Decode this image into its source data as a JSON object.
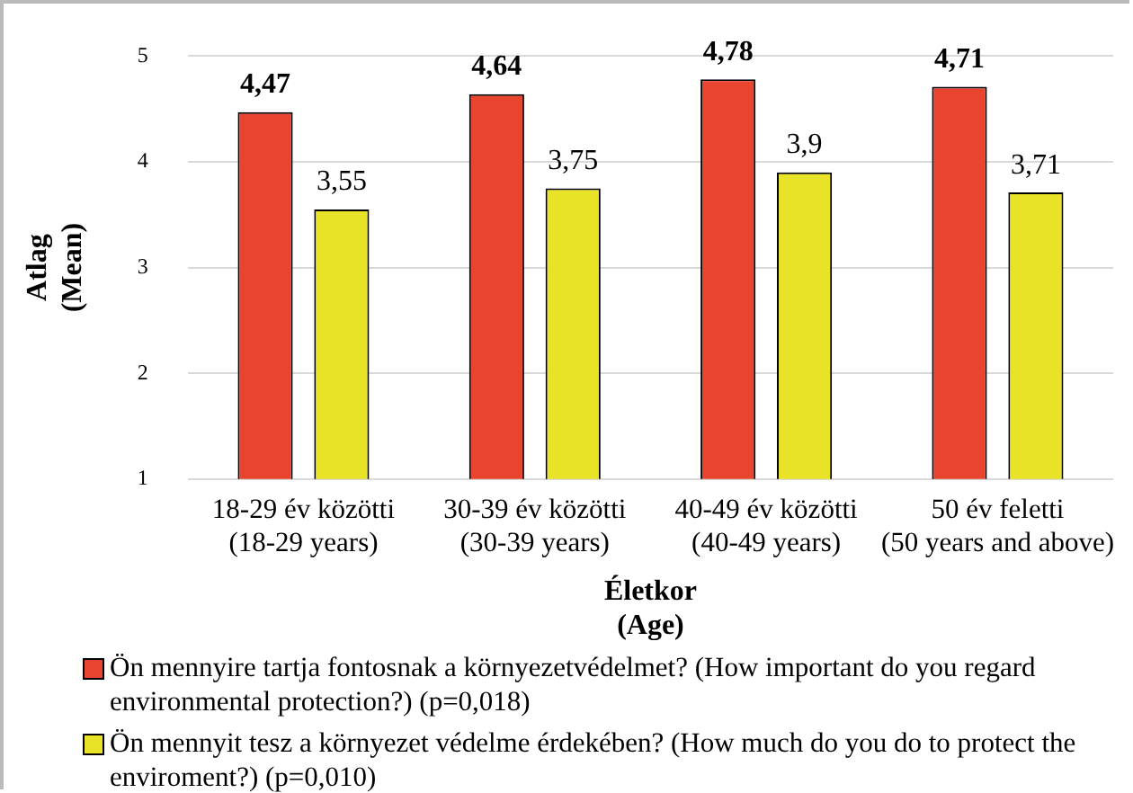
{
  "chart_data": {
    "type": "bar",
    "xlabel": "Életkor\n(Age)",
    "ylabel": "Atlag\n(Mean)",
    "categories": [
      "18-29 év közötti\n(18-29 years)",
      "30-39 év közötti\n(30-39 years)",
      "40-49 év közötti\n(40-49 years)",
      "50 év feletti\n(50 years and above)"
    ],
    "series": [
      {
        "name": "Ön mennyire tartja fontosnak a környezetvédelmet? (How important do you regard environmental protection?) (p=0,018)",
        "color": "#e8442e",
        "values": [
          4.47,
          4.64,
          4.78,
          4.71
        ],
        "value_labels": [
          "4,47",
          "4,64",
          "4,78",
          "4,71"
        ]
      },
      {
        "name": "Ön mennyit tesz a környezet védelme érdekében? (How much do you do to protect the enviroment?) (p=0,010)",
        "color": "#e8e327",
        "values": [
          3.55,
          3.75,
          3.9,
          3.71
        ],
        "value_labels": [
          "3,55",
          "3,75",
          "3,9",
          "3,71"
        ]
      }
    ],
    "ylim": [
      1,
      5
    ],
    "yticks": [
      1,
      2,
      3,
      4,
      5
    ],
    "grid": "y",
    "legend": "bottom"
  }
}
